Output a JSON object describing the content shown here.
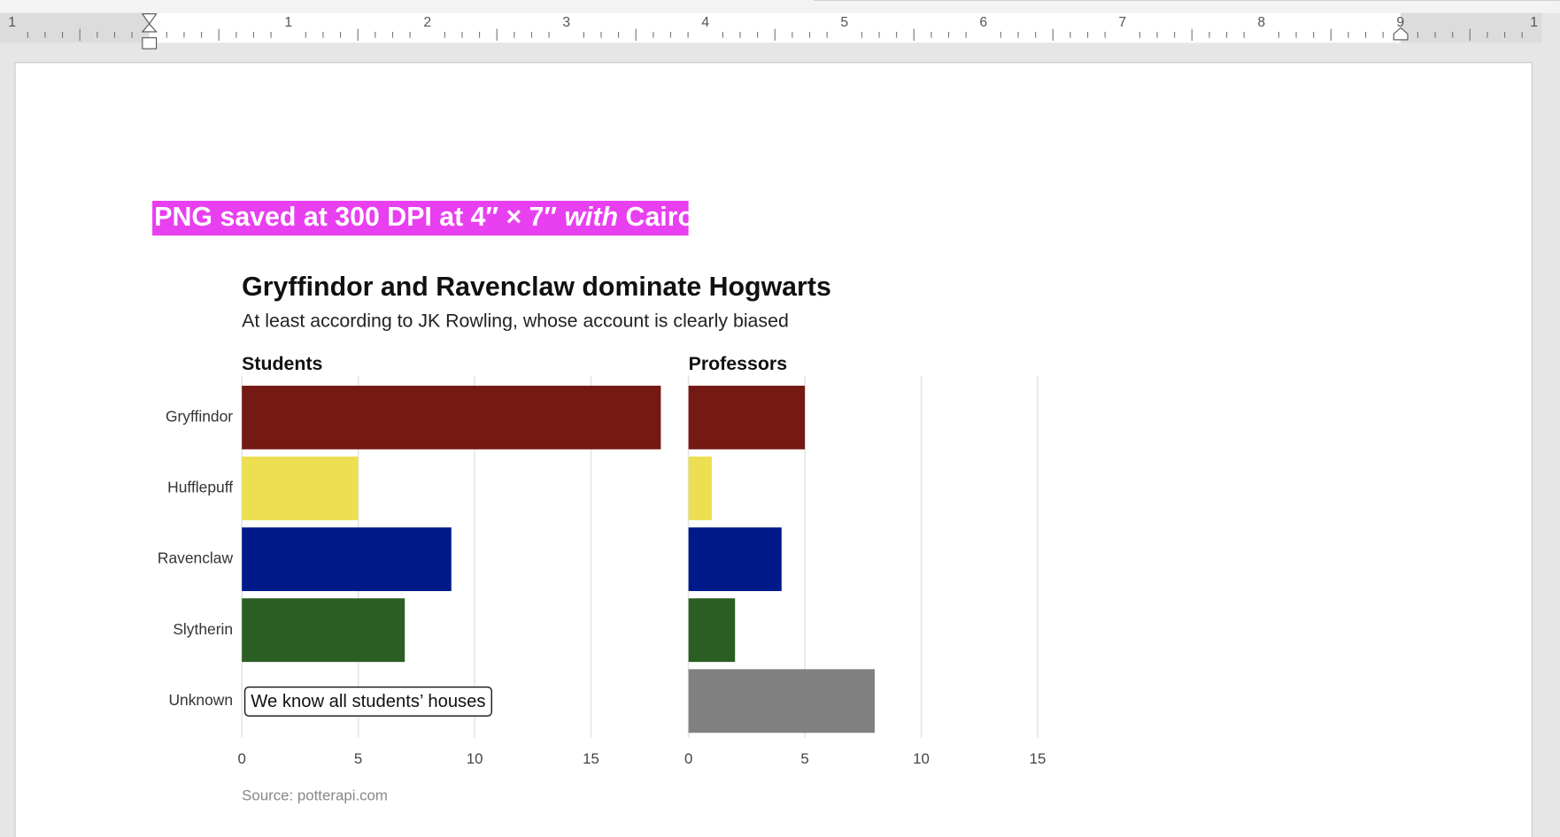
{
  "document": {
    "ruler_labels": [
      "1",
      "1",
      "2",
      "3",
      "4",
      "5",
      "6",
      "7",
      "8",
      "9",
      "1"
    ],
    "highlight_parts": [
      "PNG saved at 300 DPI at 4″ × 7″ ",
      "with",
      " Cairo"
    ]
  },
  "chart_data": [
    {
      "type": "bar",
      "orientation": "horizontal",
      "title": "Gryffindor and Ravenclaw dominate Hogwarts",
      "subtitle": "At least according to JK Rowling, whose account is clearly biased",
      "panel_title": "Students",
      "categories": [
        "Gryffindor",
        "Hufflepuff",
        "Ravenclaw",
        "Slytherin",
        "Unknown"
      ],
      "values": [
        18,
        5,
        9,
        7,
        null
      ],
      "colors": [
        "#741914",
        "#ECDF52",
        "#001A8A",
        "#2A5E23",
        "#808080"
      ],
      "xlim": [
        0,
        18
      ],
      "xticks": [
        0,
        5,
        10,
        15
      ],
      "grid": true,
      "annotation": "We know all students’ houses",
      "source": "Source: potterapi.com"
    },
    {
      "type": "bar",
      "orientation": "horizontal",
      "panel_title": "Professors",
      "categories": [
        "Gryffindor",
        "Hufflepuff",
        "Ravenclaw",
        "Slytherin",
        "Unknown"
      ],
      "values": [
        5,
        1,
        4,
        2,
        8
      ],
      "colors": [
        "#741914",
        "#ECDF52",
        "#001A8A",
        "#2A5E23",
        "#808080"
      ],
      "xlim": [
        0,
        18
      ],
      "xticks": [
        0,
        5,
        10,
        15
      ],
      "grid": true
    }
  ]
}
